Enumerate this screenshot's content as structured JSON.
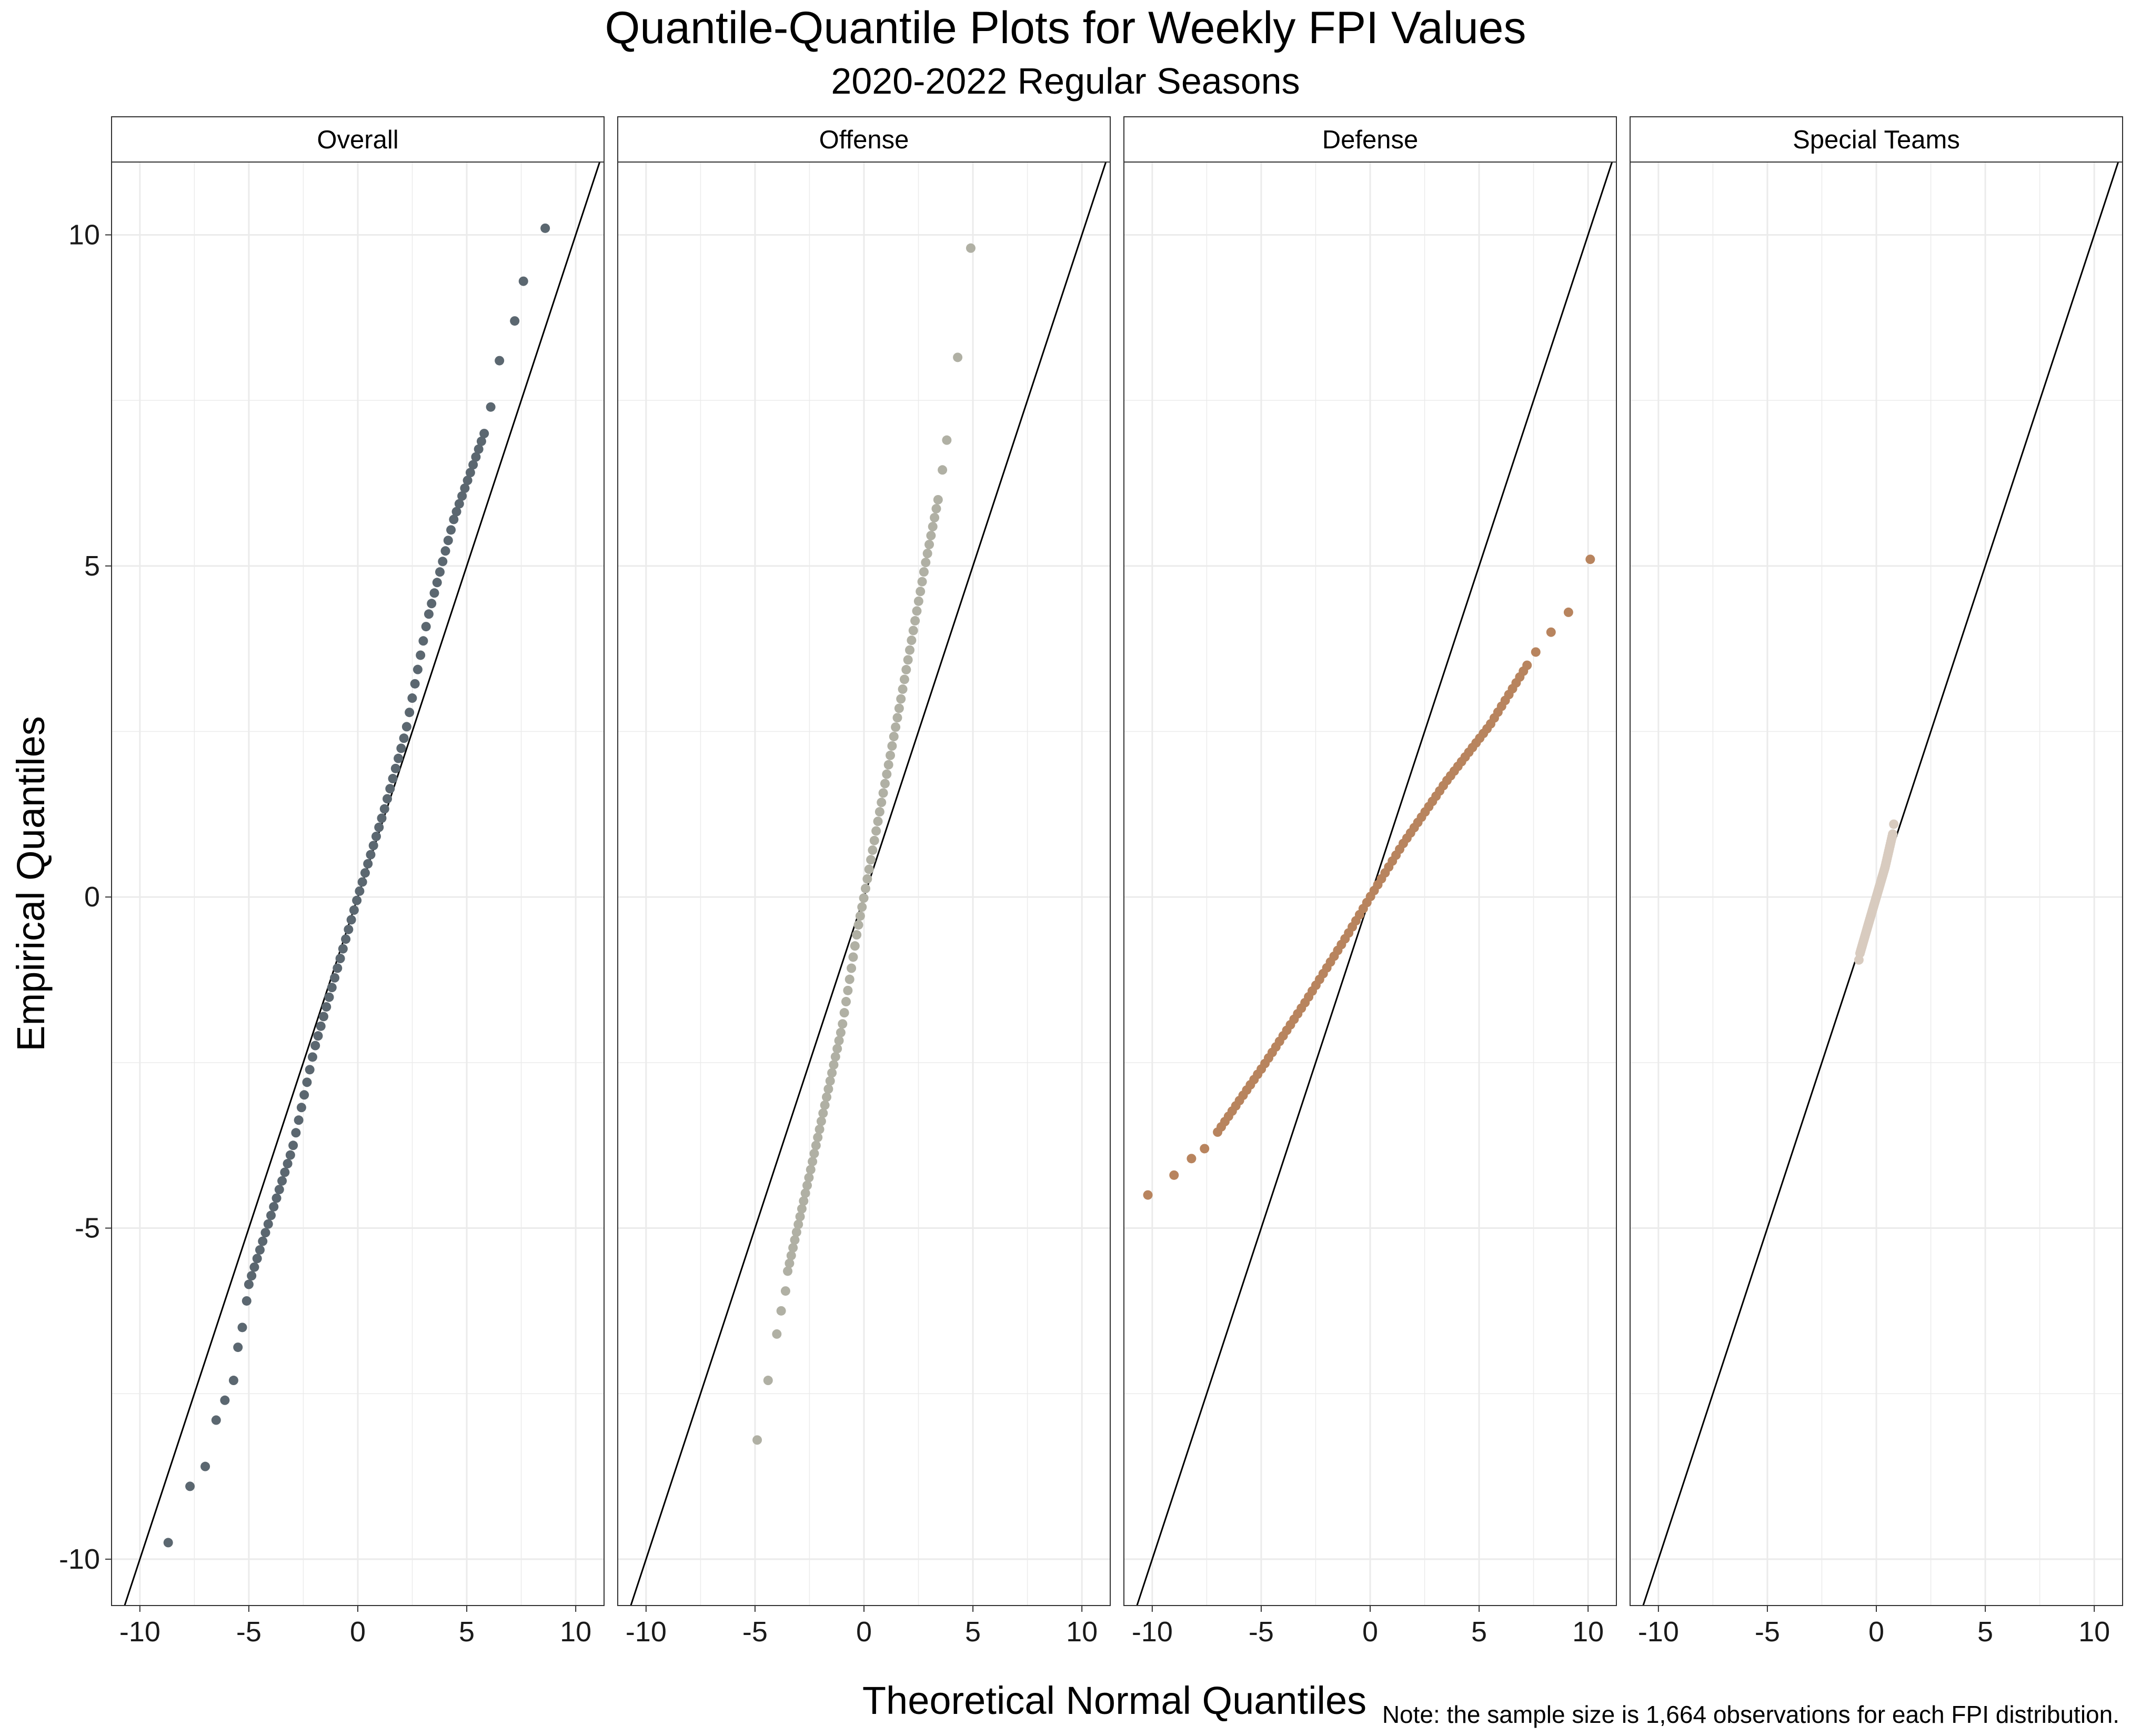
{
  "chart_data": {
    "type": "scatter",
    "title": "Quantile-Quantile Plots for Weekly FPI Values",
    "subtitle": "2020-2022 Regular Seasons",
    "xlabel": "Theoretical Normal Quantiles",
    "ylabel": "Empirical Quantiles",
    "caption": "Note: the sample size is 1,664 observations for each FPI distribution.",
    "xlim": [
      -11.3,
      11.3
    ],
    "ylim": [
      -10.7,
      11.1
    ],
    "x_ticks": [
      -10,
      -5,
      0,
      5,
      10
    ],
    "x_tick_labels": [
      "-10",
      "-5",
      "0",
      "5",
      "10"
    ],
    "y_ticks": [
      -10,
      -5,
      0,
      5,
      10
    ],
    "y_tick_labels": [
      "-10",
      "-5",
      "0",
      "5",
      "10"
    ],
    "grid": true,
    "reference_line": {
      "slope": 1,
      "intercept": 0
    },
    "panels": [
      {
        "name": "Overall",
        "color": "#5b6770",
        "extreme_points": [
          [
            -8.7,
            -9.75
          ],
          [
            -7.7,
            -8.9
          ],
          [
            -7.0,
            -8.6
          ],
          [
            -6.5,
            -7.9
          ],
          [
            -6.1,
            -7.6
          ],
          [
            -5.7,
            -7.3
          ],
          [
            -5.5,
            -6.8
          ],
          [
            -5.3,
            -6.5
          ],
          [
            -5.1,
            -6.1
          ],
          [
            7.2,
            8.7
          ],
          [
            7.6,
            9.3
          ],
          [
            8.6,
            10.1
          ],
          [
            6.5,
            8.1
          ],
          [
            6.1,
            7.4
          ]
        ],
        "core": [
          {
            "q": -5.0,
            "v": -5.85
          },
          {
            "q": -3.0,
            "v": -3.8
          },
          {
            "q": -2.0,
            "v": -2.3
          },
          {
            "q": 0.0,
            "v": 0.0
          },
          {
            "q": 1.2,
            "v": 1.3
          },
          {
            "q": 2.2,
            "v": 2.5
          },
          {
            "q": 3.2,
            "v": 4.2
          },
          {
            "q": 4.4,
            "v": 5.7
          },
          {
            "q": 5.8,
            "v": 7.0
          }
        ],
        "n_core": 86
      },
      {
        "name": "Offense",
        "color": "#b0b0a4",
        "extreme_points": [
          [
            -4.9,
            -8.2
          ],
          [
            -4.4,
            -7.3
          ],
          [
            -4.0,
            -6.6
          ],
          [
            -3.8,
            -6.25
          ],
          [
            -3.6,
            -5.95
          ],
          [
            4.9,
            9.8
          ],
          [
            4.3,
            8.15
          ],
          [
            3.8,
            6.9
          ],
          [
            3.6,
            6.45
          ]
        ],
        "core": [
          {
            "q": -3.5,
            "v": -5.65
          },
          {
            "q": -2.5,
            "v": -4.2
          },
          {
            "q": -1.0,
            "v": -1.95
          },
          {
            "q": -0.3,
            "v": -0.5
          },
          {
            "q": 0.0,
            "v": 0.0
          },
          {
            "q": 0.7,
            "v": 1.25
          },
          {
            "q": 1.7,
            "v": 3.0
          },
          {
            "q": 2.8,
            "v": 5.0
          },
          {
            "q": 3.4,
            "v": 6.0
          }
        ],
        "n_core": 86
      },
      {
        "name": "Defense",
        "color": "#b8845e",
        "extreme_points": [
          [
            -10.2,
            -4.5
          ],
          [
            -9.0,
            -4.2
          ],
          [
            -8.2,
            -3.95
          ],
          [
            -7.6,
            -3.8
          ],
          [
            10.1,
            5.1
          ],
          [
            9.1,
            4.3
          ],
          [
            8.3,
            4.0
          ],
          [
            7.6,
            3.7
          ]
        ],
        "core": [
          {
            "q": -7.0,
            "v": -3.55
          },
          {
            "q": -5.0,
            "v": -2.6
          },
          {
            "q": -3.0,
            "v": -1.6
          },
          {
            "q": -1.0,
            "v": -0.55
          },
          {
            "q": 0.0,
            "v": 0.0
          },
          {
            "q": 1.5,
            "v": 0.8
          },
          {
            "q": 3.5,
            "v": 1.75
          },
          {
            "q": 5.5,
            "v": 2.6
          },
          {
            "q": 7.2,
            "v": 3.5
          }
        ],
        "n_core": 86
      },
      {
        "name": "Special Teams",
        "color": "#d8cbbf",
        "extreme_points": [
          [
            -0.8,
            -0.95
          ],
          [
            0.8,
            1.1
          ]
        ],
        "core": [
          {
            "q": -0.75,
            "v": -0.85
          },
          {
            "q": -0.4,
            "v": -0.45
          },
          {
            "q": 0.0,
            "v": 0.0
          },
          {
            "q": 0.4,
            "v": 0.45
          },
          {
            "q": 0.75,
            "v": 0.95
          }
        ],
        "n_core": 60
      }
    ]
  }
}
